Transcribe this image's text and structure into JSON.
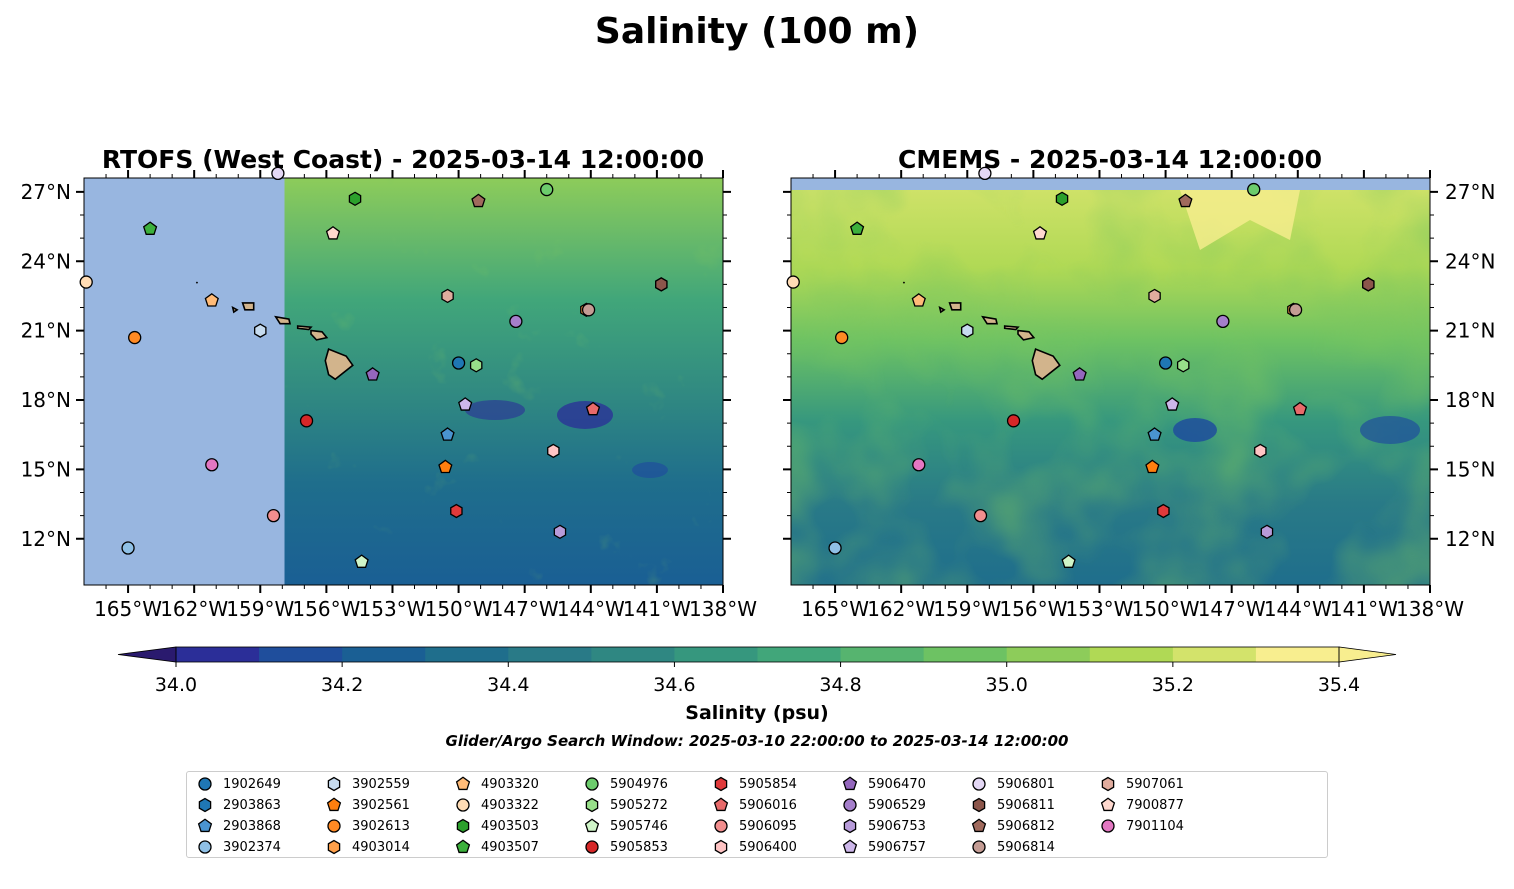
{
  "figure": {
    "title": "Salinity (100 m)",
    "colorbar_label": "Salinity (psu)",
    "search_window": "Glider/Argo Search Window: 2025-03-10 22:00:00 to 2025-03-14 12:00:00"
  },
  "panels": [
    {
      "id": "rtofs",
      "title": "RTOFS (West Coast) - 2025-03-14 12:00:00"
    },
    {
      "id": "cmems",
      "title": "CMEMS - 2025-03-14 12:00:00"
    }
  ],
  "colors": {
    "land_mask": "#98b6e0",
    "island": "#d2b48c",
    "cmap": [
      "#2a1a6e",
      "#2b2e98",
      "#1f4e9c",
      "#1a5f94",
      "#1f6e8c",
      "#297a87",
      "#2f8782",
      "#36977e",
      "#41a67a",
      "#56b46f",
      "#6dc263",
      "#8dcc5a",
      "#b0d955",
      "#d3e36b",
      "#f8ee8f"
    ]
  },
  "chart_data": {
    "type": "heatmap",
    "variable": "Salinity (psu)",
    "depth": "100 m",
    "xlim": [
      -167,
      -138
    ],
    "ylim": [
      10,
      27.6
    ],
    "x_ticks": [
      -165,
      -162,
      -159,
      -156,
      -153,
      -150,
      -147,
      -144,
      -141,
      -138
    ],
    "x_tick_labels": [
      "165°W",
      "162°W",
      "159°W",
      "156°W",
      "153°W",
      "150°W",
      "147°W",
      "144°W",
      "141°W",
      "138°W"
    ],
    "y_ticks": [
      12,
      15,
      18,
      21,
      24,
      27
    ],
    "y_tick_labels": [
      "12°N",
      "15°N",
      "18°N",
      "21°N",
      "24°N",
      "27°N"
    ],
    "colorbar": {
      "min": 34.0,
      "max": 35.4,
      "step": 0.1,
      "extend": "both",
      "ticks": [
        34.0,
        34.2,
        34.4,
        34.6,
        34.8,
        35.0,
        35.2,
        35.4
      ],
      "tick_labels": [
        "34.0",
        "34.2",
        "34.4",
        "34.6",
        "34.8",
        "35.0",
        "35.2",
        "35.4"
      ]
    },
    "rtofs_domain_west_lon": -157.9
  },
  "legend": [
    {
      "id": "1902649",
      "color": "#1f77b4",
      "marker": "circle"
    },
    {
      "id": "2903863",
      "color": "#1f77b4",
      "marker": "hexagon"
    },
    {
      "id": "2903868",
      "color": "#4a94d0",
      "marker": "pentagon"
    },
    {
      "id": "3902374",
      "color": "#8fc0e6",
      "marker": "circle"
    },
    {
      "id": "3902559",
      "color": "#c6dbef",
      "marker": "hexagon"
    },
    {
      "id": "3902561",
      "color": "#ff7f0e",
      "marker": "pentagon"
    },
    {
      "id": "3902613",
      "color": "#ff8a24",
      "marker": "circle"
    },
    {
      "id": "4903014",
      "color": "#ffa04a",
      "marker": "hexagon"
    },
    {
      "id": "4903320",
      "color": "#ffbb78",
      "marker": "pentagon"
    },
    {
      "id": "4903322",
      "color": "#ffdcb5",
      "marker": "circle"
    },
    {
      "id": "4903503",
      "color": "#2ca02c",
      "marker": "hexagon"
    },
    {
      "id": "4903507",
      "color": "#3cb03c",
      "marker": "pentagon"
    },
    {
      "id": "5904976",
      "color": "#6ccc6c",
      "marker": "circle"
    },
    {
      "id": "5905272",
      "color": "#98df8a",
      "marker": "hexagon"
    },
    {
      "id": "5905746",
      "color": "#d0f5c8",
      "marker": "pentagon"
    },
    {
      "id": "5905853",
      "color": "#d62728",
      "marker": "circle"
    },
    {
      "id": "5905854",
      "color": "#e03a3b",
      "marker": "hexagon"
    },
    {
      "id": "5906016",
      "color": "#e86a6a",
      "marker": "pentagon"
    },
    {
      "id": "5906095",
      "color": "#f28e8e",
      "marker": "circle"
    },
    {
      "id": "5906400",
      "color": "#ffc4c4",
      "marker": "hexagon"
    },
    {
      "id": "5906470",
      "color": "#9467bd",
      "marker": "pentagon"
    },
    {
      "id": "5906529",
      "color": "#a57fcb",
      "marker": "circle"
    },
    {
      "id": "5906753",
      "color": "#b79bd9",
      "marker": "hexagon"
    },
    {
      "id": "5906757",
      "color": "#cdb7ea",
      "marker": "pentagon"
    },
    {
      "id": "5906801",
      "color": "#e4d8f5",
      "marker": "circle"
    },
    {
      "id": "5906811",
      "color": "#8c564b",
      "marker": "hexagon"
    },
    {
      "id": "5906812",
      "color": "#a06a5d",
      "marker": "pentagon"
    },
    {
      "id": "5906814",
      "color": "#c49c94",
      "marker": "circle"
    },
    {
      "id": "5907061",
      "color": "#e0ac9e",
      "marker": "hexagon"
    },
    {
      "id": "7900877",
      "color": "#ffd9cf",
      "marker": "pentagon"
    },
    {
      "id": "7901104",
      "color": "#e377c2",
      "marker": "circle"
    }
  ],
  "floats": [
    {
      "id": "1902649",
      "lon": -150.0,
      "lat": 19.6
    },
    {
      "id": "2903863",
      "lon": -140.8,
      "lat": 23.0
    },
    {
      "id": "2903868",
      "lon": -150.5,
      "lat": 16.5
    },
    {
      "id": "3902374",
      "lon": -165.0,
      "lat": 11.6
    },
    {
      "id": "3902559",
      "lon": -159.0,
      "lat": 21.0
    },
    {
      "id": "3902561",
      "lon": -150.6,
      "lat": 15.1
    },
    {
      "id": "3902613",
      "lon": -164.7,
      "lat": 20.7
    },
    {
      "id": "4903014",
      "lon": -144.2,
      "lat": 21.9
    },
    {
      "id": "4903320",
      "lon": -161.2,
      "lat": 22.3
    },
    {
      "id": "4903322",
      "lon": -166.9,
      "lat": 23.1
    },
    {
      "id": "4903503",
      "lon": -154.7,
      "lat": 26.7
    },
    {
      "id": "4903507",
      "lon": -164.0,
      "lat": 25.4
    },
    {
      "id": "5904976",
      "lon": -146.0,
      "lat": 27.1
    },
    {
      "id": "5905272",
      "lon": -149.2,
      "lat": 19.5
    },
    {
      "id": "5905746",
      "lon": -154.4,
      "lat": 11.0
    },
    {
      "id": "5905853",
      "lon": -156.9,
      "lat": 17.1
    },
    {
      "id": "5905854",
      "lon": -150.1,
      "lat": 13.2
    },
    {
      "id": "5906016",
      "lon": -143.9,
      "lat": 17.6
    },
    {
      "id": "5906095",
      "lon": -158.4,
      "lat": 13.0
    },
    {
      "id": "5906400",
      "lon": -145.7,
      "lat": 15.8
    },
    {
      "id": "5906470",
      "lon": -153.9,
      "lat": 19.1
    },
    {
      "id": "5906529",
      "lon": -147.4,
      "lat": 21.4
    },
    {
      "id": "5906753",
      "lon": -145.4,
      "lat": 12.3
    },
    {
      "id": "5906757",
      "lon": -149.7,
      "lat": 17.8
    },
    {
      "id": "5906801",
      "lon": -158.2,
      "lat": 27.8
    },
    {
      "id": "5906811",
      "lon": -140.8,
      "lat": 23.0
    },
    {
      "id": "5906812",
      "lon": -149.1,
      "lat": 26.6
    },
    {
      "id": "5906814",
      "lon": -144.1,
      "lat": 21.9
    },
    {
      "id": "5907061",
      "lon": -150.5,
      "lat": 22.5
    },
    {
      "id": "7900877",
      "lon": -155.7,
      "lat": 25.2
    },
    {
      "id": "7901104",
      "lon": -161.2,
      "lat": 15.2
    }
  ]
}
